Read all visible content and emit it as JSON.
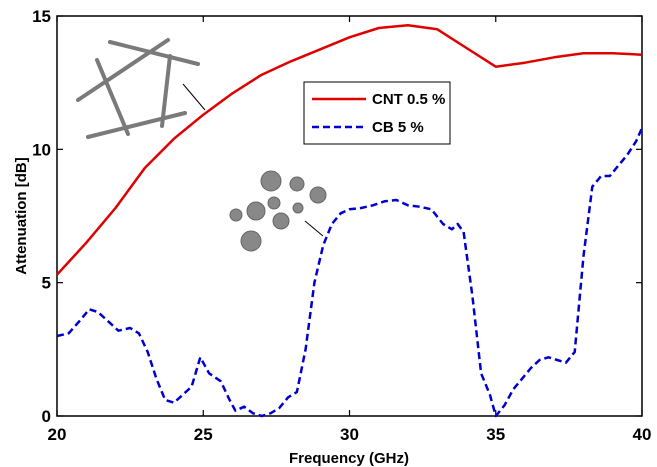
{
  "chart_data": {
    "type": "line",
    "xlabel": "Frequency (GHz)",
    "ylabel": "Attenuation [dB]",
    "xlim": [
      20,
      40
    ],
    "ylim": [
      0,
      15
    ],
    "xticks": [
      20,
      25,
      30,
      35,
      40
    ],
    "yticks": [
      0,
      5,
      10,
      15
    ],
    "grid": false,
    "legend_position": "upper-middle",
    "series": [
      {
        "name": "CNT 0.5 %",
        "color": "#e00000",
        "dash": "solid",
        "x": [
          20,
          21,
          22,
          23,
          24,
          25,
          26,
          27,
          28,
          29,
          30,
          31,
          32,
          33,
          34,
          35,
          36,
          37,
          38,
          39,
          40
        ],
        "y": [
          5.3,
          6.5,
          7.8,
          9.3,
          10.4,
          11.3,
          12.1,
          12.8,
          13.3,
          13.75,
          14.2,
          14.55,
          14.65,
          14.5,
          13.8,
          13.1,
          13.25,
          13.45,
          13.6,
          13.6,
          13.55
        ]
      },
      {
        "name": "CB 5 %",
        "color": "#0000d0",
        "dash": "dashed",
        "x": [
          20,
          20.4,
          20.8,
          21.1,
          21.4,
          21.8,
          22.1,
          22.5,
          22.8,
          23.1,
          23.4,
          23.7,
          24.0,
          24.3,
          24.6,
          24.9,
          25.2,
          25.6,
          25.9,
          26.1,
          26.4,
          26.7,
          27.0,
          27.3,
          27.6,
          27.9,
          28.2,
          28.5,
          28.8,
          29.1,
          29.4,
          29.7,
          30.0,
          30.4,
          30.8,
          31.2,
          31.6,
          32.0,
          32.4,
          32.8,
          33.2,
          33.5,
          33.7,
          33.9,
          34.2,
          34.5,
          34.8,
          35.0,
          35.3,
          35.6,
          35.9,
          36.2,
          36.5,
          36.8,
          37.1,
          37.4,
          37.7,
          38.0,
          38.3,
          38.6,
          38.9,
          39.2,
          39.5,
          39.8,
          40.0
        ],
        "y": [
          3.0,
          3.1,
          3.6,
          4.0,
          3.9,
          3.5,
          3.2,
          3.3,
          3.1,
          2.4,
          1.4,
          0.6,
          0.5,
          0.8,
          1.1,
          2.2,
          1.6,
          1.3,
          0.6,
          0.2,
          0.35,
          0.1,
          0.0,
          0.1,
          0.3,
          0.7,
          0.9,
          2.5,
          5.0,
          6.4,
          7.2,
          7.6,
          7.75,
          7.8,
          7.9,
          8.05,
          8.1,
          7.9,
          7.85,
          7.75,
          7.2,
          7.0,
          7.2,
          6.9,
          4.5,
          1.6,
          0.8,
          0.0,
          0.4,
          1.0,
          1.4,
          1.8,
          2.1,
          2.2,
          2.1,
          2.0,
          2.4,
          6.0,
          8.6,
          9.0,
          9.0,
          9.4,
          9.8,
          10.3,
          10.8
        ]
      }
    ]
  }
}
